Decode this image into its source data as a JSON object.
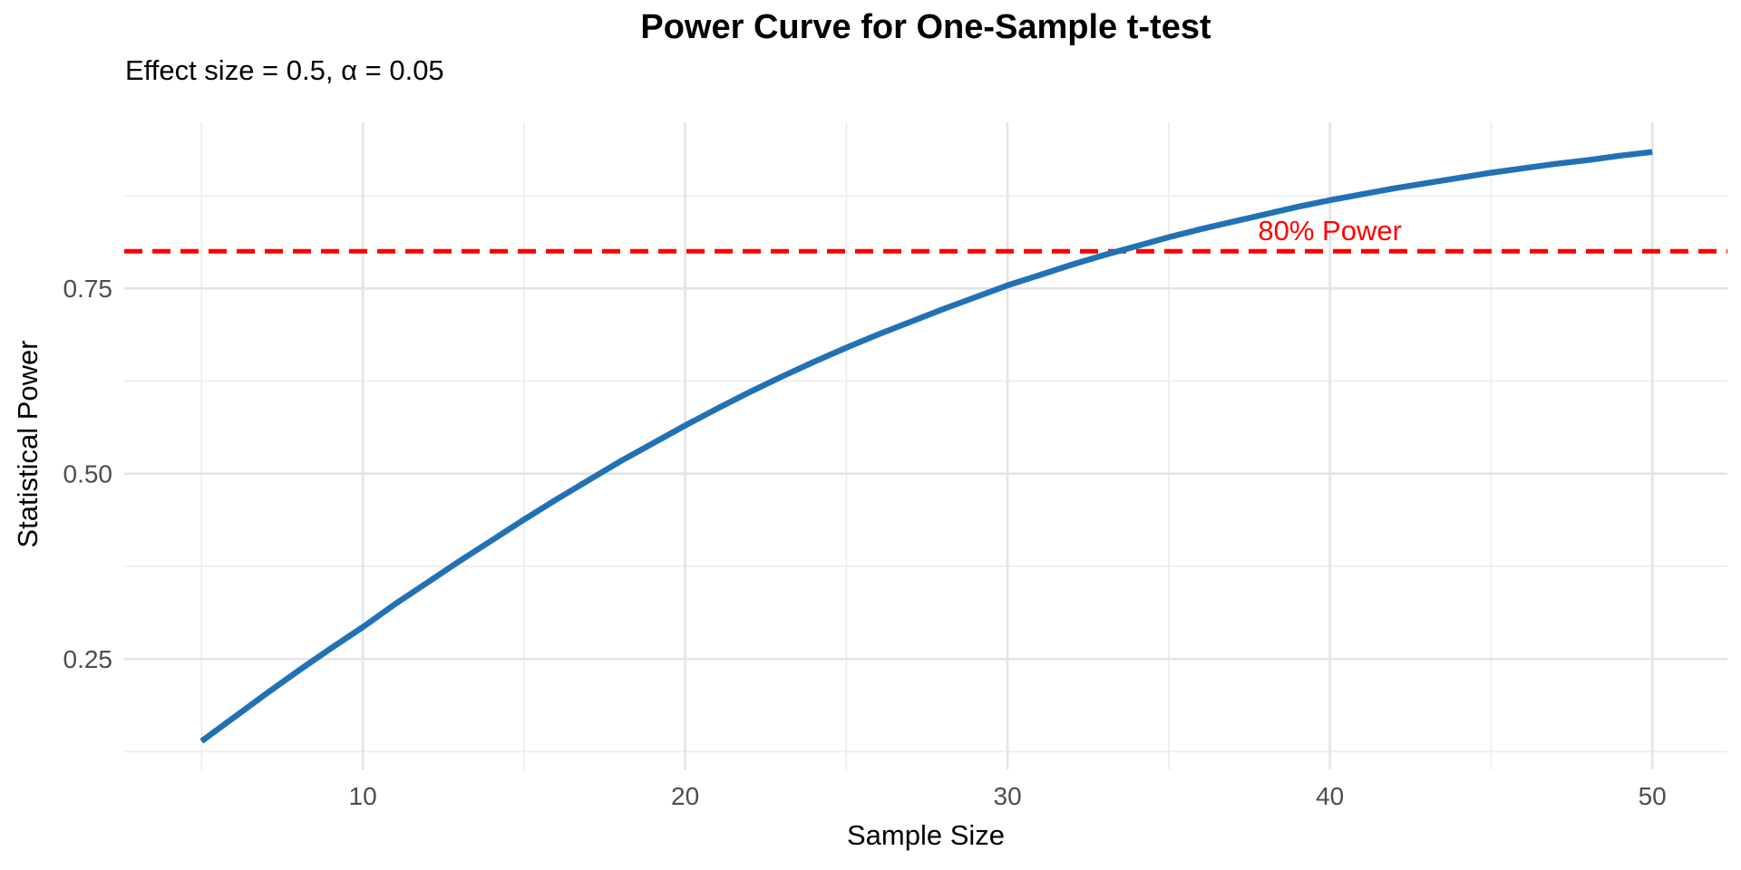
{
  "figure": {
    "background": "#FFFFFF"
  },
  "chart_data": {
    "type": "line",
    "title": "Power Curve for One-Sample t-test",
    "subtitle": "Effect size = 0.5, α = 0.05",
    "xlabel": "Sample Size",
    "ylabel": "Statistical Power",
    "x": [
      5,
      6,
      7,
      8,
      9,
      10,
      11,
      12,
      13,
      14,
      15,
      16,
      17,
      18,
      19,
      20,
      21,
      22,
      23,
      24,
      25,
      26,
      27,
      28,
      29,
      30,
      31,
      32,
      33,
      34,
      35,
      36,
      37,
      38,
      39,
      40,
      41,
      42,
      43,
      44,
      45,
      46,
      47,
      48,
      49,
      50
    ],
    "series": [
      {
        "name": "Statistical Power",
        "color": "#2171B5",
        "line_width": 6.5,
        "values": [
          0.139,
          0.171,
          0.203,
          0.234,
          0.264,
          0.293,
          0.324,
          0.353,
          0.382,
          0.41,
          0.438,
          0.465,
          0.491,
          0.517,
          0.541,
          0.565,
          0.588,
          0.61,
          0.631,
          0.651,
          0.67,
          0.688,
          0.705,
          0.722,
          0.738,
          0.754,
          0.768,
          0.782,
          0.795,
          0.807,
          0.819,
          0.83,
          0.84,
          0.85,
          0.86,
          0.869,
          0.877,
          0.885,
          0.892,
          0.899,
          0.906,
          0.912,
          0.918,
          0.923,
          0.929,
          0.934
        ]
      }
    ],
    "reference_line": {
      "value": 0.8,
      "label": "80% Power",
      "color": "#FF0000",
      "style": "dashed",
      "label_x": 40,
      "label_y": 0.829
    },
    "axes": {
      "xlim": [
        2.6,
        52.33
      ],
      "ylim": [
        0.101,
        0.974
      ],
      "x_major_ticks": [
        10,
        20,
        30,
        40,
        50
      ],
      "x_tick_labels": [
        "10",
        "20",
        "30",
        "40",
        "50"
      ],
      "x_minor_ticks": [
        5,
        15,
        25,
        35,
        45
      ],
      "y_major_ticks": [
        0.25,
        0.5,
        0.75
      ],
      "y_tick_labels": [
        "0.25",
        "0.50",
        "0.75"
      ],
      "y_minor_ticks": [
        0.125,
        0.375,
        0.625,
        0.875
      ]
    },
    "grid": true,
    "legend": "none",
    "colors": {
      "grid_major": "#E4E4E4",
      "grid_minor": "#EDEDED",
      "tick_label": "#4D4D4D",
      "text": "#000000"
    }
  }
}
